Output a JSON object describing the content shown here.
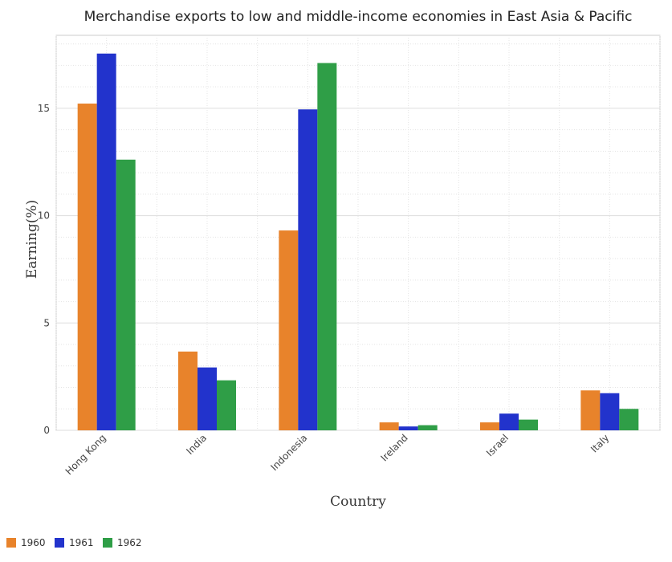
{
  "chart_data": {
    "type": "bar",
    "title": "Merchandise exports to low and middle-income economies in East Asia & Pacific",
    "xlabel": "Country",
    "ylabel": "Earning(%)",
    "categories": [
      "Hong Kong",
      "India",
      "Indonesia",
      "Ireland",
      "Israel",
      "Italy"
    ],
    "series": [
      {
        "name": "1960",
        "color": "#e8832b",
        "values": [
          15.22,
          3.67,
          9.31,
          0.37,
          0.37,
          1.86
        ]
      },
      {
        "name": "1961",
        "color": "#2233cc",
        "values": [
          17.55,
          2.93,
          14.95,
          0.18,
          0.78,
          1.73
        ]
      },
      {
        "name": "1962",
        "color": "#2f9e47",
        "values": [
          12.61,
          2.33,
          17.11,
          0.24,
          0.5,
          1.0
        ]
      }
    ],
    "ylim": [
      0,
      18.4
    ],
    "yticks": [
      0,
      5,
      10,
      15
    ],
    "grid": true,
    "legend_position": "bottom-left"
  }
}
